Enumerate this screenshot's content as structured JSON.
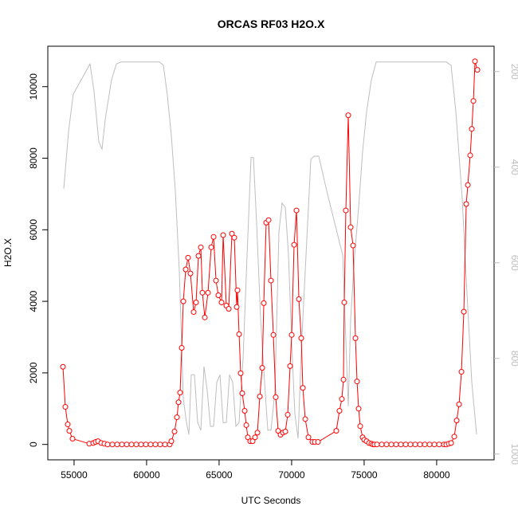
{
  "chart_data": {
    "type": "line",
    "title": "ORCAS RF03 H2O.X",
    "x_label": "UTC Seconds",
    "y_label": "H2O.X",
    "xlim": [
      53190,
      83960
    ],
    "xticks": [
      55000,
      60000,
      65000,
      70000,
      75000,
      80000
    ],
    "ylim": [
      -430,
      11130
    ],
    "yticks": [
      0,
      2000,
      4000,
      6000,
      8000,
      10000
    ],
    "y2lim": [
      1012,
      147
    ],
    "y2ticks": [
      200,
      400,
      600,
      800,
      1000
    ],
    "series": [
      {
        "color": "#bebebe",
        "axis": "y2",
        "marker": "none",
        "x": [
          54289,
          54619,
          54948,
          56102,
          56377,
          56707,
          56927,
          57146,
          57586,
          57916,
          58245,
          60883,
          61158,
          61433,
          61707,
          61982,
          62257,
          62532,
          62751,
          62916,
          63081,
          63301,
          63521,
          63740,
          63960,
          64180,
          64400,
          64620,
          64839,
          65059,
          65279,
          65499,
          65719,
          65938,
          66158,
          66378,
          66653,
          66928,
          67202,
          67367,
          67587,
          67862,
          68137,
          68356,
          68576,
          68851,
          69126,
          69345,
          69565,
          69785,
          70005,
          70225,
          70444,
          70664,
          70884,
          71104,
          71324,
          71543,
          71873,
          72423,
          72972,
          73522,
          73906,
          74071,
          74346,
          74621,
          74895,
          75170,
          75500,
          75829,
          80665,
          80995,
          81324,
          81764,
          82039,
          82423,
          82753
        ],
        "values": [
          445,
          325,
          247,
          184,
          242,
          347,
          362,
          300,
          217,
          184,
          180,
          180,
          187,
          250,
          334,
          450,
          617,
          884,
          934,
          959,
          834,
          834,
          934,
          950,
          817,
          867,
          942,
          942,
          850,
          834,
          934,
          934,
          834,
          850,
          942,
          934,
          800,
          584,
          380,
          380,
          517,
          717,
          850,
          950,
          950,
          867,
          534,
          475,
          484,
          584,
          767,
          917,
          967,
          784,
          650,
          517,
          384,
          377,
          377,
          450,
          517,
          584,
          900,
          717,
          584,
          484,
          367,
          284,
          217,
          180,
          180,
          187,
          284,
          467,
          634,
          850,
          959
        ]
      },
      {
        "color": "#ff0000",
        "marker": "circle",
        "x": [
          54234,
          54399,
          54564,
          54674,
          54893,
          56047,
          56322,
          56487,
          56652,
          56872,
          57091,
          57311,
          57641,
          57971,
          58300,
          58630,
          58960,
          59290,
          59619,
          59949,
          60279,
          60608,
          60938,
          61268,
          61597,
          61707,
          61927,
          62092,
          62202,
          62312,
          62422,
          62532,
          62697,
          62861,
          63026,
          63246,
          63411,
          63576,
          63740,
          63850,
          64015,
          64235,
          64455,
          64620,
          64785,
          64949,
          65169,
          65279,
          65499,
          65664,
          65884,
          66048,
          66213,
          66268,
          66378,
          66488,
          66598,
          66763,
          66873,
          66982,
          67147,
          67312,
          67477,
          67642,
          67807,
          67972,
          68081,
          68246,
          68411,
          68576,
          68741,
          68906,
          69071,
          69236,
          69400,
          69565,
          69730,
          69895,
          70005,
          70170,
          70335,
          70500,
          70664,
          70774,
          70939,
          71159,
          71434,
          71599,
          71819,
          73079,
          73299,
          73464,
          73574,
          73629,
          73739,
          73906,
          74071,
          74236,
          74401,
          74511,
          74621,
          74730,
          74895,
          75005,
          75170,
          75335,
          75500,
          75610,
          75719,
          75884,
          76214,
          76544,
          76874,
          77203,
          77533,
          77863,
          78192,
          78522,
          78852,
          79182,
          79511,
          79841,
          80171,
          80500,
          80665,
          80830,
          80995,
          81214,
          81379,
          81544,
          81709,
          81874,
          82039,
          82149,
          82313,
          82423,
          82533,
          82643,
          82808
        ],
        "values": [
          2170,
          1050,
          560,
          380,
          160,
          20,
          40,
          70,
          90,
          40,
          20,
          0,
          0,
          0,
          0,
          0,
          0,
          0,
          0,
          0,
          0,
          0,
          0,
          0,
          0,
          90,
          360,
          760,
          1180,
          1450,
          2700,
          4000,
          4890,
          5220,
          4780,
          3700,
          3970,
          5270,
          5510,
          4240,
          3550,
          4240,
          5510,
          5800,
          4580,
          4170,
          3970,
          5850,
          3880,
          3790,
          5890,
          5780,
          3840,
          4310,
          3080,
          1990,
          1430,
          940,
          540,
          200,
          90,
          90,
          200,
          330,
          1340,
          2140,
          3950,
          6200,
          6270,
          4580,
          3060,
          1320,
          380,
          270,
          330,
          360,
          830,
          2190,
          3060,
          5580,
          6540,
          4060,
          2970,
          1580,
          710,
          200,
          70,
          70,
          70,
          380,
          940,
          1270,
          1810,
          3970,
          6540,
          9200,
          6070,
          5560,
          2970,
          1760,
          1000,
          510,
          200,
          130,
          90,
          40,
          20,
          0,
          0,
          0,
          0,
          0,
          0,
          0,
          0,
          0,
          0,
          0,
          0,
          0,
          0,
          0,
          0,
          0,
          0,
          20,
          40,
          220,
          670,
          1120,
          2030,
          3710,
          6720,
          7250,
          8080,
          8820,
          9600,
          10710,
          10470
        ]
      }
    ]
  }
}
